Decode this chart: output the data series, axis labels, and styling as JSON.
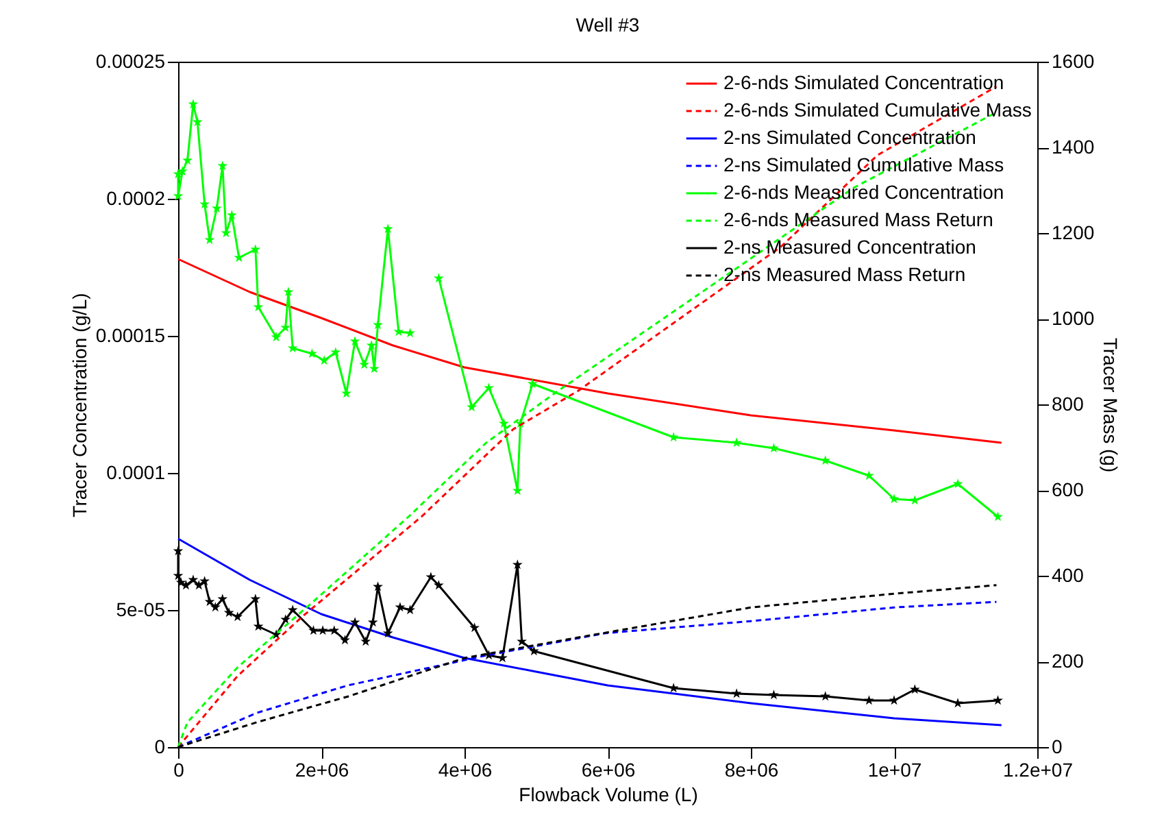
{
  "chart_data": {
    "type": "line",
    "title": "Well #3",
    "xlabel": "Flowback Volume (L)",
    "ylabel": "Tracer Concentration (g/L)",
    "y2label": "Tracer Mass (g)",
    "xlim": [
      0,
      12000000
    ],
    "xticks": [
      0,
      {
        "value": 2000000,
        "label": "2e+06"
      },
      {
        "value": 4000000,
        "label": "4e+06"
      },
      {
        "value": 6000000,
        "label": "6e+06"
      },
      {
        "value": 8000000,
        "label": "8e+06"
      },
      {
        "value": 10000000,
        "label": "1e+07"
      },
      {
        "value": 12000000,
        "label": "1.2e+07"
      }
    ],
    "ylim": [
      0,
      0.00025
    ],
    "yticks": [
      0,
      {
        "value": 5e-05,
        "label": "5e-05"
      },
      0.0001,
      0.00015,
      0.0002,
      0.00025
    ],
    "y2lim": [
      0,
      1600
    ],
    "y2ticks": [
      0,
      200,
      400,
      600,
      800,
      1000,
      1200,
      1400,
      1600
    ],
    "grid": false,
    "legend": "top right",
    "series": [
      {
        "name": "2-6-nds Simulated Concentration",
        "color": "#ff0000",
        "line_style": "solid",
        "marker": "none",
        "x": [
          0,
          1000000,
          2000000,
          3000000,
          4000000,
          6000000,
          8000000,
          10000000,
          11500000
        ],
        "values": [
          0.000178,
          0.000166,
          0.0001565,
          0.0001465,
          0.0001385,
          0.000129,
          0.000121,
          0.0001155,
          0.000111
        ]
      },
      {
        "name": "2-6-nds Simulated Cumulative Mass",
        "color": "#ff0000",
        "line_style": "dashed",
        "marker": "none",
        "axis": "y2",
        "x": [
          0,
          830000,
          1730000,
          3400000,
          4680000,
          5590000,
          8420000,
          9770000,
          11430000
        ],
        "values": [
          0,
          166,
          304,
          538,
          742,
          832,
          1168,
          1382,
          1542
        ]
      },
      {
        "name": "2-ns Simulated Concentration",
        "color": "#0000ff",
        "line_style": "solid",
        "marker": "none",
        "x": [
          0,
          1000000,
          2000000,
          3000000,
          4000000,
          5000000,
          6000000,
          8000000,
          10000000,
          11500000
        ],
        "values": [
          7.6e-05,
          6.1e-05,
          4.85e-05,
          4e-05,
          3.25e-05,
          2.75e-05,
          2.25e-05,
          1.6e-05,
          1.05e-05,
          8e-06
        ]
      },
      {
        "name": "2-ns Simulated Cumulative Mass",
        "color": "#0000ff",
        "line_style": "dashed",
        "marker": "none",
        "axis": "y2",
        "x": [
          0,
          1100000,
          2370000,
          4300000,
          5970000,
          8000000,
          10000000,
          11430000
        ],
        "values": [
          0,
          80,
          144,
          214,
          266,
          294,
          326,
          339
        ]
      },
      {
        "name": "2-6-nds Measured Concentration",
        "color": "#00ff00",
        "line_style": "solid",
        "marker": "star",
        "x": [
          0,
          0,
          60000,
          130000,
          210000,
          270000,
          370000,
          440000,
          540000,
          620000,
          670000,
          750000,
          850000,
          1080000,
          1120000,
          1370000,
          1500000,
          1540000,
          1600000,
          1870000,
          2040000,
          2200000,
          2350000,
          2470000,
          2600000,
          2700000,
          2740000,
          2790000,
          2930000,
          3080000,
          3240000,
          3400000,
          3640000,
          4100000,
          4340000,
          4550000,
          4740000,
          4780000,
          4950000,
          6920000,
          7800000,
          8320000,
          9040000,
          9650000,
          10000000,
          10290000,
          10890000,
          11450000
        ],
        "values": [
          0.000209,
          0.000201,
          0.00021,
          0.000214,
          0.0002345,
          0.000228,
          0.000198,
          0.000185,
          0.0001965,
          0.000212,
          0.0001875,
          0.000194,
          0.0001785,
          0.0001815,
          0.0001605,
          0.0001495,
          0.000153,
          0.000166,
          0.0001455,
          0.0001435,
          0.000141,
          0.000144,
          0.000129,
          0.000148,
          0.0001395,
          0.0001465,
          0.000138,
          0.000154,
          0.000189,
          0.0001515,
          0.000151,
          null,
          0.000171,
          0.000124,
          0.000131,
          0.000118,
          9.35e-05,
          0.000118,
          0.0001325,
          0.000113,
          0.000111,
          0.000109,
          0.0001045,
          9.9e-05,
          9.05e-05,
          9e-05,
          9.6e-05,
          8.4e-05
        ]
      },
      {
        "name": "2-6-nds Measured Mass Return",
        "color": "#00ff00",
        "line_style": "dashed",
        "marker": "none",
        "axis": "y2",
        "x": [
          0,
          130000,
          830000,
          1930000,
          3220000,
          4300000,
          5260000,
          8150000,
          9440000,
          11430000
        ],
        "values": [
          0,
          58,
          186,
          346,
          538,
          710,
          826,
          1158,
          1306,
          1482
        ]
      },
      {
        "name": "2-ns Measured Concentration",
        "color": "#000000",
        "line_style": "solid",
        "marker": "star",
        "x": [
          0,
          0,
          40000,
          110000,
          210000,
          290000,
          370000,
          440000,
          520000,
          620000,
          710000,
          830000,
          1080000,
          1120000,
          1370000,
          1500000,
          1600000,
          1890000,
          2020000,
          2180000,
          2330000,
          2470000,
          2620000,
          2720000,
          2790000,
          2930000,
          3100000,
          3240000,
          3530000,
          3640000,
          4140000,
          4340000,
          4530000,
          4740000,
          4800000,
          4970000,
          6920000,
          7800000,
          8320000,
          9040000,
          9650000,
          10000000,
          10290000,
          10890000,
          11450000
        ],
        "values": [
          7.15e-05,
          6.25e-05,
          6e-05,
          5.9e-05,
          6.1e-05,
          5.9e-05,
          6.05e-05,
          5.3e-05,
          5.1e-05,
          5.4e-05,
          4.9e-05,
          4.75e-05,
          5.4e-05,
          4.4e-05,
          4.1e-05,
          4.65e-05,
          5e-05,
          4.25e-05,
          4.25e-05,
          4.25e-05,
          3.9e-05,
          4.55e-05,
          3.85e-05,
          4.55e-05,
          5.85e-05,
          4.15e-05,
          5.1e-05,
          5e-05,
          6.2e-05,
          5.9e-05,
          4.35e-05,
          3.35e-05,
          3.25e-05,
          6.65e-05,
          3.85e-05,
          3.5e-05,
          2.15e-05,
          1.95e-05,
          1.9e-05,
          1.85e-05,
          1.7e-05,
          1.7e-05,
          2.1e-05,
          1.6e-05,
          1.7e-05
        ]
      },
      {
        "name": "2-ns Measured Mass Return",
        "color": "#000000",
        "line_style": "dashed",
        "marker": "none",
        "axis": "y2",
        "x": [
          0,
          1100000,
          2370000,
          4000000,
          5590000,
          8000000,
          10000000,
          11430000
        ],
        "values": [
          0,
          58,
          118,
          208,
          256,
          326,
          358,
          378
        ]
      }
    ]
  }
}
